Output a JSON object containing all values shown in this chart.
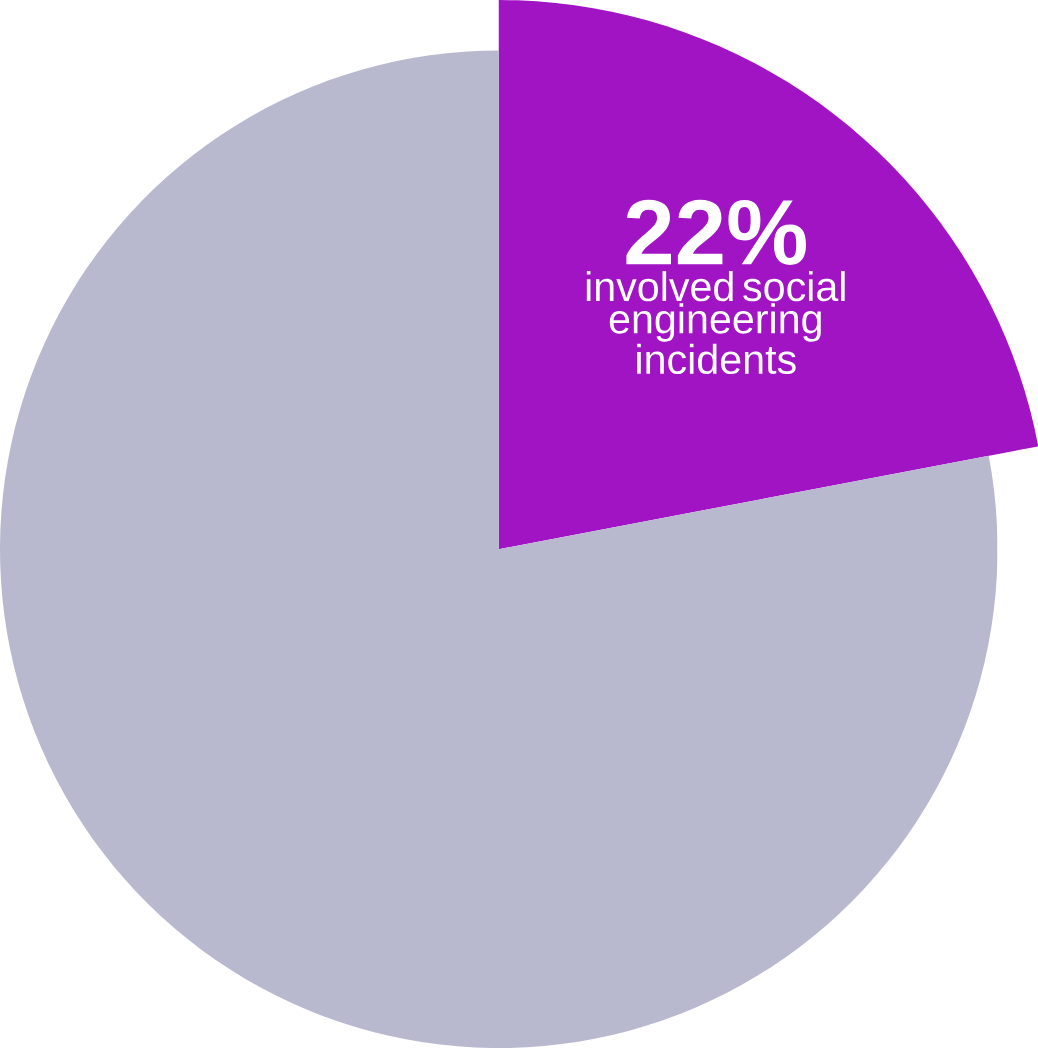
{
  "chart_data": {
    "type": "pie",
    "categories": [
      "involved social engineering incidents",
      null
    ],
    "values": [
      22,
      78
    ],
    "colors": [
      "#a014c4",
      "#b8b9cf"
    ],
    "value_labels": [
      "22%",
      null
    ]
  }
}
